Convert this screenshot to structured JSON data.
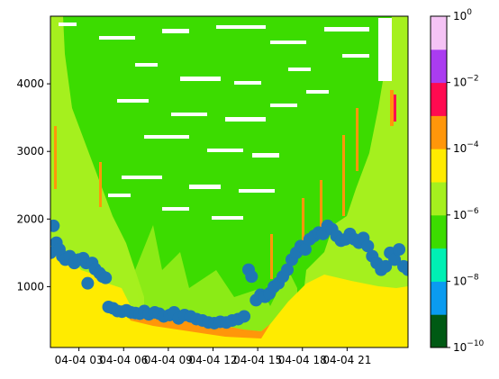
{
  "chart_data": {
    "type": "heatmap",
    "title": "",
    "xlabel": "",
    "ylabel": "",
    "x_tick_labels": [
      "04-04 03",
      "04-04 06",
      "04-04 09",
      "04-04 12",
      "04-04 15",
      "04-04 18",
      "04-04 21"
    ],
    "y_ticks": [
      1000,
      2000,
      3000,
      4000
    ],
    "ylim": [
      100,
      5000
    ],
    "colorbar": {
      "scale": "log",
      "tick_labels": [
        {
          "base": "10",
          "exp": "−10"
        },
        {
          "base": "10",
          "exp": "−8"
        },
        {
          "base": "10",
          "exp": "−6"
        },
        {
          "base": "10",
          "exp": "−4"
        },
        {
          "base": "10",
          "exp": "−2"
        },
        {
          "base": "10",
          "exp": "0"
        }
      ],
      "levels_exponent": [
        -10,
        -9,
        -8,
        -7,
        -6,
        -5,
        -4,
        -3,
        -2,
        -1,
        0
      ],
      "colors": [
        "#005a14",
        "#0a9bf0",
        "#00f0b4",
        "#3cdc00",
        "#a5f01e",
        "#ffeb00",
        "#ff960a",
        "#ff0a50",
        "#aa3cf0",
        "#f5c3f5"
      ]
    },
    "overlay_series": {
      "type": "scatter",
      "color": "#1f77b4",
      "description": "boundary layer height points",
      "points": [
        [
          0.0,
          1500
        ],
        [
          0.2,
          1900
        ],
        [
          0.4,
          1650
        ],
        [
          0.6,
          1550
        ],
        [
          0.8,
          1450
        ],
        [
          1.0,
          1400
        ],
        [
          1.3,
          1450
        ],
        [
          1.6,
          1350
        ],
        [
          1.9,
          1400
        ],
        [
          2.2,
          1420
        ],
        [
          2.4,
          1350
        ],
        [
          2.5,
          1050
        ],
        [
          2.8,
          1350
        ],
        [
          3.0,
          1260
        ],
        [
          3.3,
          1200
        ],
        [
          3.5,
          1150
        ],
        [
          3.7,
          1130
        ],
        [
          3.9,
          700
        ],
        [
          4.2,
          680
        ],
        [
          4.5,
          640
        ],
        [
          4.8,
          630
        ],
        [
          5.1,
          650
        ],
        [
          5.4,
          620
        ],
        [
          5.7,
          610
        ],
        [
          6.0,
          600
        ],
        [
          6.3,
          640
        ],
        [
          6.6,
          590
        ],
        [
          7.0,
          620
        ],
        [
          7.3,
          600
        ],
        [
          7.6,
          560
        ],
        [
          8.0,
          580
        ],
        [
          8.3,
          620
        ],
        [
          8.6,
          530
        ],
        [
          9.0,
          580
        ],
        [
          9.4,
          560
        ],
        [
          9.8,
          520
        ],
        [
          10.2,
          500
        ],
        [
          10.6,
          470
        ],
        [
          11.0,
          460
        ],
        [
          11.4,
          480
        ],
        [
          11.8,
          470
        ],
        [
          12.2,
          500
        ],
        [
          12.6,
          520
        ],
        [
          13.0,
          560
        ],
        [
          13.3,
          1250
        ],
        [
          13.5,
          1150
        ],
        [
          13.8,
          800
        ],
        [
          14.1,
          880
        ],
        [
          14.4,
          850
        ],
        [
          14.7,
          900
        ],
        [
          15.0,
          1000
        ],
        [
          15.3,
          1050
        ],
        [
          15.6,
          1150
        ],
        [
          15.9,
          1250
        ],
        [
          16.2,
          1400
        ],
        [
          16.5,
          1500
        ],
        [
          16.8,
          1600
        ],
        [
          17.1,
          1550
        ],
        [
          17.4,
          1700
        ],
        [
          17.7,
          1750
        ],
        [
          18.0,
          1800
        ],
        [
          18.3,
          1780
        ],
        [
          18.6,
          1900
        ],
        [
          18.9,
          1850
        ],
        [
          19.2,
          1750
        ],
        [
          19.5,
          1680
        ],
        [
          19.8,
          1700
        ],
        [
          20.1,
          1780
        ],
        [
          20.4,
          1700
        ],
        [
          20.7,
          1650
        ],
        [
          21.0,
          1720
        ],
        [
          21.3,
          1600
        ],
        [
          21.6,
          1450
        ],
        [
          21.9,
          1350
        ],
        [
          22.2,
          1250
        ],
        [
          22.5,
          1300
        ],
        [
          22.8,
          1500
        ],
        [
          23.1,
          1400
        ],
        [
          23.4,
          1550
        ],
        [
          23.7,
          1300
        ],
        [
          24.0,
          1250
        ]
      ]
    }
  }
}
